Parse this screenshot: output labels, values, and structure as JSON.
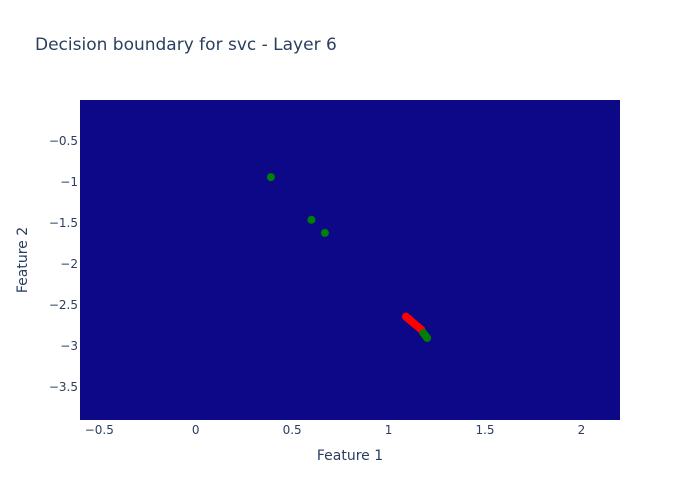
{
  "chart_data": {
    "type": "scatter",
    "title": "Decision boundary for svc - Layer 6",
    "xlabel": "Feature 1",
    "ylabel": "Feature 2",
    "xlim": [
      -0.6,
      2.2
    ],
    "ylim": [
      -3.9,
      0.0
    ],
    "xticks": [
      -0.5,
      0,
      0.5,
      1,
      1.5,
      2
    ],
    "xtick_labels": [
      "−0.5",
      "0",
      "0.5",
      "1",
      "1.5",
      "2"
    ],
    "yticks": [
      -0.5,
      -1,
      -1.5,
      -2,
      -2.5,
      -3,
      -3.5
    ],
    "ytick_labels": [
      "−0.5",
      "−1",
      "−1.5",
      "−2",
      "−2.5",
      "−3",
      "−3.5"
    ],
    "grid": false,
    "background_color": "#0d0887",
    "series": [
      {
        "color": "#ff0000",
        "x": [
          1.09,
          1.1,
          1.11,
          1.12,
          1.13,
          1.14,
          1.15,
          1.16,
          1.17
        ],
        "y": [
          -2.64,
          -2.66,
          -2.68,
          -2.7,
          -2.72,
          -2.74,
          -2.76,
          -2.78,
          -2.8
        ]
      },
      {
        "color": "#008000",
        "x": [
          0.39,
          0.6,
          0.67,
          1.18,
          1.19,
          1.2
        ],
        "y": [
          -0.94,
          -1.46,
          -1.62,
          -2.84,
          -2.87,
          -2.9
        ]
      }
    ]
  }
}
